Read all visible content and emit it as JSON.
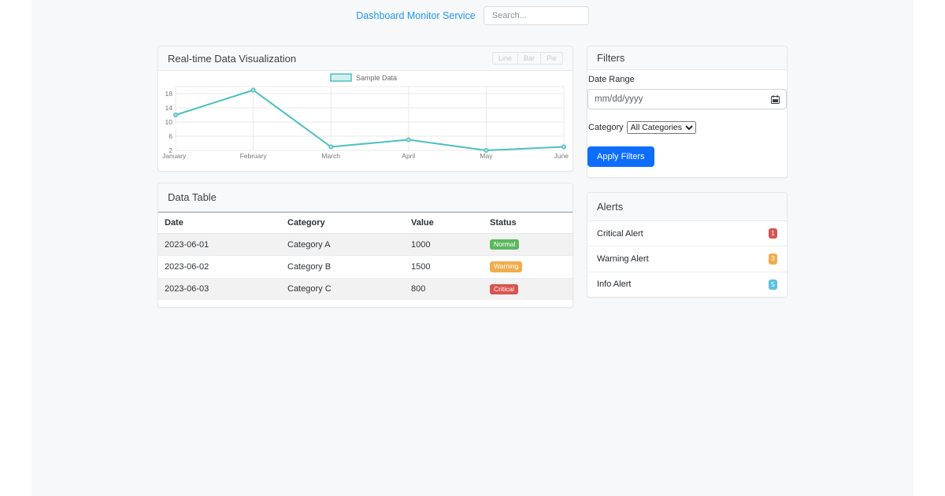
{
  "header": {
    "brand": "Dashboard Monitor Service",
    "search_placeholder": "Search..."
  },
  "chart_card": {
    "title": "Real-time Data Visualization",
    "buttons": {
      "line": "Line",
      "bar": "Bar",
      "pie": "Pie"
    }
  },
  "chart_data": {
    "type": "line",
    "x": [
      "January",
      "February",
      "March",
      "April",
      "May",
      "June"
    ],
    "series": [
      {
        "name": "Sample Data",
        "values": [
          12,
          19,
          3,
          5,
          2,
          3
        ]
      }
    ],
    "yticks": [
      2,
      6,
      10,
      14,
      18
    ],
    "ylim": [
      2,
      20
    ],
    "legend_position": "top",
    "grid": true,
    "line_color": "#4bc0c0",
    "point_fill": "#a8dede",
    "grid_color": "#e8e8e8",
    "tick_color": "#777777"
  },
  "table_card": {
    "title": "Data Table",
    "columns": {
      "date": "Date",
      "category": "Category",
      "value": "Value",
      "status": "Status"
    },
    "rows": [
      {
        "date": "2023-06-01",
        "category": "Category A",
        "value": "1000",
        "status": "Normal",
        "status_color": "#5cb85c"
      },
      {
        "date": "2023-06-02",
        "category": "Category B",
        "value": "1500",
        "status": "Warning",
        "status_color": "#f0ad4e"
      },
      {
        "date": "2023-06-03",
        "category": "Category C",
        "value": "800",
        "status": "Critical",
        "status_color": "#d9534f"
      }
    ]
  },
  "filters": {
    "title": "Filters",
    "date_label": "Date Range",
    "date_placeholder": "mm/dd/yyyy",
    "category_label": "Category",
    "category_value": "All Categories",
    "apply_label": "Apply Filters",
    "apply_color": "#0d6efd"
  },
  "alerts": {
    "title": "Alerts",
    "items": [
      {
        "label": "Critical Alert",
        "count": "1",
        "color": "#d9534f"
      },
      {
        "label": "Warning Alert",
        "count": "3",
        "color": "#f0ad4e"
      },
      {
        "label": "Info Alert",
        "count": "5",
        "color": "#5bc0de"
      }
    ]
  }
}
